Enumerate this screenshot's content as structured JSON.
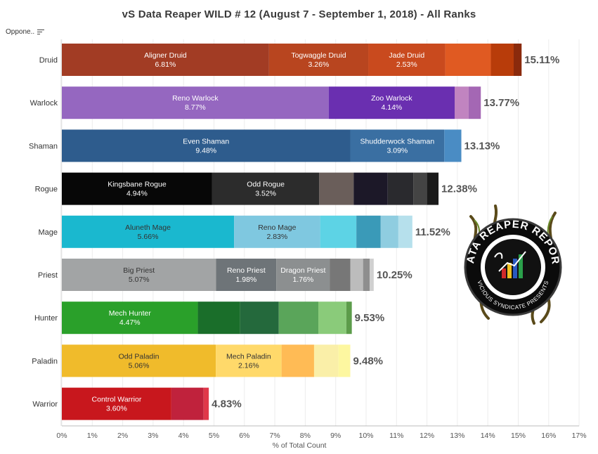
{
  "title": "vS Data Reaper WILD # 12 (August 7 - September 1, 2018) - All Ranks",
  "filter_label": "Oppone..",
  "logo": {
    "top_text": "DATA REAPER REPORT",
    "bottom_text": "VICIOUS SYNDICATE PRESENTS"
  },
  "chart_data": {
    "type": "bar",
    "orientation": "horizontal-stacked",
    "xlabel": "% of Total Count",
    "xlim": [
      0,
      17
    ],
    "x_ticks": [
      "0%",
      "1%",
      "2%",
      "3%",
      "4%",
      "5%",
      "6%",
      "7%",
      "8%",
      "9%",
      "10%",
      "11%",
      "12%",
      "13%",
      "14%",
      "15%",
      "16%",
      "17%"
    ],
    "categories": [
      "Druid",
      "Warlock",
      "Shaman",
      "Rogue",
      "Mage",
      "Priest",
      "Hunter",
      "Paladin",
      "Warrior"
    ],
    "totals": [
      "15.11%",
      "13.77%",
      "13.13%",
      "12.38%",
      "11.52%",
      "10.25%",
      "9.53%",
      "9.48%",
      "4.83%"
    ],
    "rows": [
      {
        "class": "Druid",
        "segments": [
          {
            "name": "Aligner Druid",
            "value": 6.81,
            "label": "6.81%",
            "color": "#a23c24"
          },
          {
            "name": "Togwaggle Druid",
            "value": 3.26,
            "label": "3.26%",
            "color": "#b8451f"
          },
          {
            "name": "Jade Druid",
            "value": 2.53,
            "label": "2.53%",
            "color": "#c94a1e"
          },
          {
            "name": "",
            "value": 1.5,
            "color": "#e05a22"
          },
          {
            "name": "",
            "value": 0.75,
            "color": "#b83c0a"
          },
          {
            "name": "",
            "value": 0.26,
            "color": "#8a2a0c"
          }
        ]
      },
      {
        "class": "Warlock",
        "segments": [
          {
            "name": "Reno Warlock",
            "value": 8.77,
            "label": "8.77%",
            "color": "#9567c0"
          },
          {
            "name": "Zoo Warlock",
            "value": 4.14,
            "label": "4.14%",
            "color": "#6a2fb0"
          },
          {
            "name": "",
            "value": 0.46,
            "color": "#c184c0"
          },
          {
            "name": "",
            "value": 0.4,
            "color": "#a467b4"
          }
        ]
      },
      {
        "class": "Shaman",
        "segments": [
          {
            "name": "Even Shaman",
            "value": 9.48,
            "label": "9.48%",
            "color": "#2e5c8d"
          },
          {
            "name": "Shudderwock Shaman",
            "value": 3.09,
            "label": "3.09%",
            "color": "#3a6fa2"
          },
          {
            "name": "",
            "value": 0.56,
            "color": "#4a8cc4"
          }
        ]
      },
      {
        "class": "Rogue",
        "segments": [
          {
            "name": "Kingsbane Rogue",
            "value": 4.94,
            "label": "4.94%",
            "color": "#070707"
          },
          {
            "name": "Odd Rogue",
            "value": 3.52,
            "label": "3.52%",
            "color": "#2c2c2c"
          },
          {
            "name": "",
            "value": 1.13,
            "color": "#6a5e5a"
          },
          {
            "name": "",
            "value": 1.12,
            "color": "#1c1828"
          },
          {
            "name": "",
            "value": 0.84,
            "color": "#2a2a2e"
          },
          {
            "name": "",
            "value": 0.45,
            "color": "#444444"
          },
          {
            "name": "",
            "value": 0.38,
            "color": "#1a1a1a"
          }
        ]
      },
      {
        "class": "Mage",
        "segments": [
          {
            "name": "Aluneth Mage",
            "value": 5.66,
            "label": "5.66%",
            "color": "#1ab8cf",
            "dark": true
          },
          {
            "name": "Reno Mage",
            "value": 2.83,
            "label": "2.83%",
            "color": "#7fc8e0",
            "dark": true
          },
          {
            "name": "",
            "value": 1.19,
            "color": "#5dd3e5"
          },
          {
            "name": "",
            "value": 0.8,
            "color": "#3a9ab8"
          },
          {
            "name": "",
            "value": 0.58,
            "color": "#8fcde0"
          },
          {
            "name": "",
            "value": 0.46,
            "color": "#b6e0ec"
          }
        ]
      },
      {
        "class": "Priest",
        "segments": [
          {
            "name": "Big Priest",
            "value": 5.07,
            "label": "5.07%",
            "color": "#a2a4a5",
            "dark": true
          },
          {
            "name": "Reno Priest",
            "value": 1.98,
            "label": "1.98%",
            "color": "#6e7478"
          },
          {
            "name": "Dragon Priest",
            "value": 1.76,
            "label": "1.76%",
            "color": "#8c8f90"
          },
          {
            "name": "",
            "value": 0.67,
            "color": "#777777"
          },
          {
            "name": "",
            "value": 0.42,
            "color": "#bcbcbc"
          },
          {
            "name": "",
            "value": 0.22,
            "color": "#8e8e8e"
          },
          {
            "name": "",
            "value": 0.13,
            "color": "#d0d0d0"
          }
        ]
      },
      {
        "class": "Hunter",
        "segments": [
          {
            "name": "Mech Hunter",
            "value": 4.47,
            "label": "4.47%",
            "color": "#2aa02a"
          },
          {
            "name": "",
            "value": 1.39,
            "color": "#1a6e2a"
          },
          {
            "name": "",
            "value": 1.27,
            "color": "#24693c"
          },
          {
            "name": "",
            "value": 1.3,
            "color": "#5aa55a"
          },
          {
            "name": "",
            "value": 0.92,
            "color": "#8acb7a"
          },
          {
            "name": "",
            "value": 0.18,
            "color": "#5c9c4a"
          }
        ]
      },
      {
        "class": "Paladin",
        "segments": [
          {
            "name": "Odd Paladin",
            "value": 5.06,
            "label": "5.06%",
            "color": "#f0bb2b",
            "dark": true
          },
          {
            "name": "Mech Paladin",
            "value": 2.16,
            "label": "2.16%",
            "color": "#ffd96a",
            "dark": true
          },
          {
            "name": "",
            "value": 1.07,
            "color": "#ffbb55"
          },
          {
            "name": "",
            "value": 0.8,
            "color": "#faefa8"
          },
          {
            "name": "",
            "value": 0.39,
            "color": "#fdf7a0"
          }
        ]
      },
      {
        "class": "Warrior",
        "segments": [
          {
            "name": "Control Warrior",
            "value": 3.6,
            "label": "3.60%",
            "color": "#c8171d"
          },
          {
            "name": "",
            "value": 1.06,
            "color": "#c0223c"
          },
          {
            "name": "",
            "value": 0.17,
            "color": "#e0384a"
          }
        ]
      }
    ]
  }
}
